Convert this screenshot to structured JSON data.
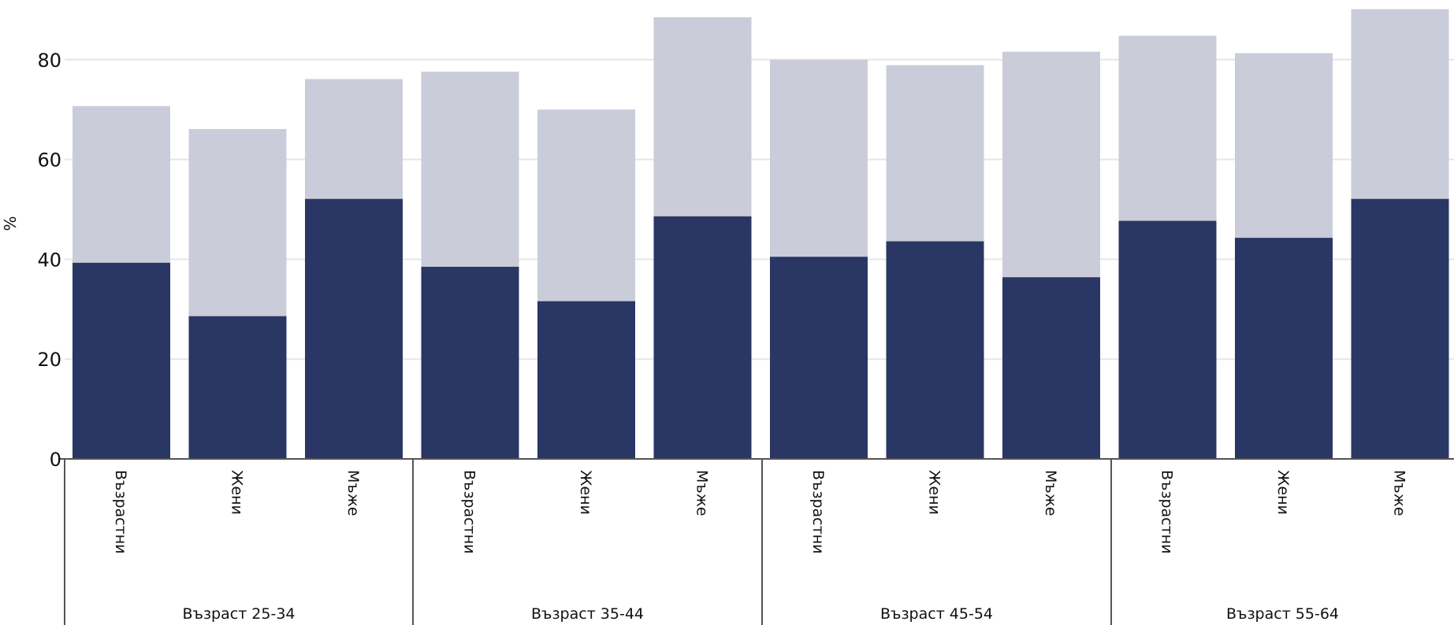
{
  "chart_data": {
    "type": "bar",
    "stacking": "overlay",
    "ylabel": "%",
    "ylim": [
      0,
      90
    ],
    "yticks": [
      0,
      20,
      40,
      60,
      80
    ],
    "grid": true,
    "groups": [
      {
        "label": "Възраст 25-34",
        "categories": [
          "Възрастни",
          "Жени",
          "Мъже"
        ],
        "dark_values": [
          39.3,
          28.6,
          52.1
        ],
        "light_values": [
          70.7,
          66.1,
          76.1
        ]
      },
      {
        "label": "Възраст 35-44",
        "categories": [
          "Възрастни",
          "Жени",
          "Мъже"
        ],
        "dark_values": [
          38.5,
          31.6,
          48.6
        ],
        "light_values": [
          77.6,
          70.0,
          88.5
        ]
      },
      {
        "label": "Възраст 45-54",
        "categories": [
          "Възрастни",
          "Жени",
          "Мъже"
        ],
        "dark_values": [
          40.5,
          43.6,
          36.4
        ],
        "light_values": [
          80.0,
          78.9,
          81.6
        ]
      },
      {
        "label": "Възраст 55-64",
        "categories": [
          "Възрастни",
          "Жени",
          "Мъже"
        ],
        "dark_values": [
          47.7,
          44.3,
          52.1
        ],
        "light_values": [
          84.8,
          81.3,
          90.1
        ]
      }
    ],
    "colors": {
      "dark": "#2a3764",
      "light": "#cacdd9",
      "grid": "#e6e6e6",
      "axis": "#555555"
    }
  }
}
